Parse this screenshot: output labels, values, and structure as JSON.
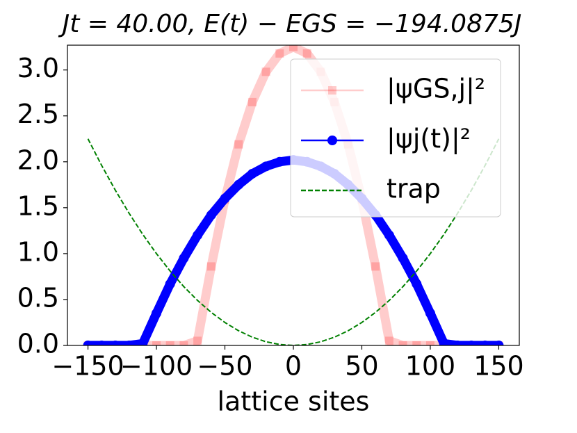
{
  "chart_data": {
    "type": "line",
    "title": "Jt = 40.00,  E(t) − EGS = −194.0875J",
    "x_label": "lattice sites",
    "x": [
      -150,
      -140,
      -130,
      -120,
      -110,
      -100,
      -90,
      -80,
      -70,
      -60,
      -50,
      -40,
      -30,
      -20,
      -10,
      0,
      10,
      20,
      30,
      40,
      50,
      60,
      70,
      80,
      90,
      100,
      110,
      120,
      130,
      140,
      150
    ],
    "series": [
      {
        "name": "|ψGS,j|²",
        "color": "#ff0000",
        "marker": "square",
        "opacity": 0.2,
        "values": [
          0,
          0,
          0,
          0,
          0,
          0,
          0,
          0,
          0.05,
          0.86,
          1.59,
          2.19,
          2.65,
          2.98,
          3.18,
          3.25,
          3.18,
          2.98,
          2.65,
          2.19,
          1.59,
          0.86,
          0.05,
          0,
          0,
          0,
          0,
          0,
          0,
          0,
          0
        ]
      },
      {
        "name": "|ψj(t)|²",
        "color": "#0000ff",
        "marker": "circle",
        "opacity": 1,
        "values": [
          0,
          0,
          0,
          0,
          0.02,
          0.35,
          0.67,
          0.95,
          1.2,
          1.42,
          1.6,
          1.75,
          1.87,
          1.95,
          2.0,
          2.02,
          2.0,
          1.95,
          1.87,
          1.75,
          1.6,
          1.42,
          1.2,
          0.95,
          0.67,
          0.35,
          0.02,
          0,
          0,
          0,
          0
        ]
      },
      {
        "name": "trap",
        "color": "#008000",
        "marker": "none",
        "dash": true,
        "opacity": 1,
        "values": [
          2.25,
          1.96,
          1.69,
          1.44,
          1.21,
          1.0,
          0.81,
          0.64,
          0.49,
          0.36,
          0.25,
          0.16,
          0.09,
          0.04,
          0.01,
          0,
          0.01,
          0.04,
          0.09,
          0.16,
          0.25,
          0.36,
          0.49,
          0.64,
          0.81,
          1.0,
          1.21,
          1.44,
          1.69,
          1.96,
          2.25
        ]
      }
    ],
    "xlim": [
      -165,
      165
    ],
    "ylim": [
      0,
      3.27
    ],
    "xticks": [
      {
        "value": -150,
        "label": "−150"
      },
      {
        "value": -100,
        "label": "−100"
      },
      {
        "value": -50,
        "label": "−50"
      },
      0,
      50,
      100,
      150
    ],
    "yticks": [
      {
        "value": 0,
        "label": "0.0"
      },
      0.5,
      {
        "value": 1,
        "label": "1.0"
      },
      1.5,
      {
        "value": 2,
        "label": "2.0"
      },
      2.5,
      {
        "value": 3,
        "label": "3.0"
      }
    ],
    "legend": "upper right",
    "grid": false
  }
}
